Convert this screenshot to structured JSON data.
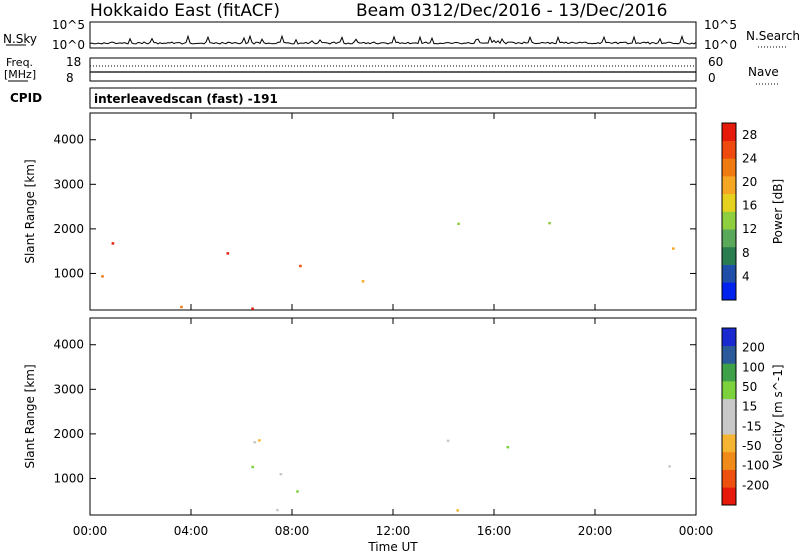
{
  "header": {
    "station": "Hokkaido East (fitACF)",
    "beam": "Beam 03",
    "date_range": "12/Dec/2016 - 13/Dec/2016"
  },
  "panels": {
    "nsky": {
      "label": "N.Sky",
      "ticks": [
        "10^5",
        "10^0"
      ]
    },
    "nsearch": {
      "label": "N.Search",
      "ticks": [
        "10^5",
        "10^0"
      ]
    },
    "freq": {
      "label_line1": "Freq.",
      "label_line2": "[MHz]",
      "ticks": [
        "18",
        "8"
      ]
    },
    "nave": {
      "label": "Nave",
      "ticks": [
        "60",
        "0"
      ]
    },
    "cpid": {
      "label": "CPID",
      "value": "interleavedscan (fast) -191"
    }
  },
  "colors": {
    "power": [
      "#0022ee",
      "#1f4fa8",
      "#2a7d4f",
      "#5aa85a",
      "#8fcf3f",
      "#e6d21e",
      "#f5a623",
      "#f07a12",
      "#ee4a10",
      "#e61a0a"
    ],
    "velocity": [
      "#e61a0a",
      "#ee5010",
      "#f08a18",
      "#f5b532",
      "#c8c8c8",
      "#c8c8c8",
      "#7cd23c",
      "#3fa04a",
      "#2a5a9a",
      "#1a2ad0"
    ],
    "ground_scatter": "#c0c0c0"
  },
  "chart_data": [
    {
      "type": "heatmap",
      "title": "Power",
      "xlabel": "",
      "ylabel": "Slant Range [km]",
      "x_ticks": [
        "00:00",
        "04:00",
        "08:00",
        "12:00",
        "16:00",
        "20:00",
        "00:00"
      ],
      "y_ticks": [
        "1000",
        "2000",
        "3000",
        "4000"
      ],
      "ylim": [
        180,
        4600
      ],
      "xlim_hours": [
        0,
        24
      ],
      "colorbar": {
        "label": "Power [dB]",
        "ticks": [
          "4",
          "8",
          "12",
          "16",
          "20",
          "24",
          "28"
        ],
        "range": [
          0,
          30
        ]
      },
      "regions": [
        {
          "t": [
            0.2,
            7.0
          ],
          "r": [
            950,
            1850
          ],
          "value": 26
        },
        {
          "t": [
            7.0,
            11.8
          ],
          "r": [
            600,
            1350
          ],
          "value": 22
        },
        {
          "t": [
            0.0,
            24.0
          ],
          "r": [
            200,
            420
          ],
          "value": 27
        },
        {
          "t": [
            13.5,
            18.5
          ],
          "r": [
            1500,
            2200
          ],
          "value": 16
        },
        {
          "t": [
            21.6,
            23.9
          ],
          "r": [
            1150,
            2000
          ],
          "value": 24
        }
      ]
    },
    {
      "type": "heatmap",
      "title": "Velocity",
      "xlabel": "Time UT",
      "ylabel": "Slant Range [km]",
      "x_ticks": [
        "00:00",
        "04:00",
        "08:00",
        "12:00",
        "16:00",
        "20:00",
        "00:00"
      ],
      "y_ticks": [
        "1000",
        "2000",
        "3000",
        "4000"
      ],
      "ylim": [
        180,
        4600
      ],
      "xlim_hours": [
        0,
        24
      ],
      "colorbar": {
        "label": "Velocity [m s^-1]",
        "ticks": [
          "200",
          "100",
          "50",
          "15",
          "-15",
          "-50",
          "-100",
          "-200"
        ],
        "range": [
          -250,
          250
        ]
      },
      "regions": [
        {
          "t": [
            0.2,
            7.0
          ],
          "r": [
            950,
            1950
          ],
          "value": 0
        },
        {
          "t": [
            7.0,
            11.8
          ],
          "r": [
            600,
            1350
          ],
          "value": 0
        },
        {
          "t": [
            0.0,
            24.0
          ],
          "r": [
            200,
            420
          ],
          "value": -40
        },
        {
          "t": [
            13.5,
            18.5
          ],
          "r": [
            1500,
            2200
          ],
          "value": 40
        },
        {
          "t": [
            21.6,
            23.9
          ],
          "r": [
            1150,
            2000
          ],
          "value": 0
        }
      ]
    }
  ]
}
